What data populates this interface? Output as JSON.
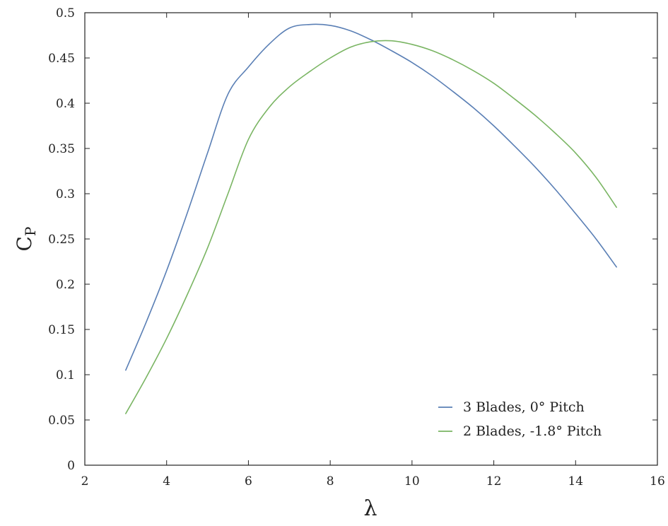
{
  "chart_data": {
    "type": "line",
    "title": "",
    "xlabel": "λ",
    "ylabel_main": "C",
    "ylabel_sub": "P",
    "xlim": [
      2,
      16
    ],
    "ylim": [
      0,
      0.5
    ],
    "x_ticks": [
      2,
      4,
      6,
      8,
      10,
      12,
      14,
      16
    ],
    "y_ticks": [
      0,
      0.05,
      0.1,
      0.15,
      0.2,
      0.25,
      0.3,
      0.35,
      0.4,
      0.45,
      0.5
    ],
    "x_tick_labels": [
      "2",
      "4",
      "6",
      "8",
      "10",
      "12",
      "14",
      "16"
    ],
    "y_tick_labels": [
      "0",
      "0.05",
      "0.1",
      "0.15",
      "0.2",
      "0.25",
      "0.3",
      "0.35",
      "0.4",
      "0.45",
      "0.5"
    ],
    "grid": false,
    "legend_position": "bottom-right",
    "series": [
      {
        "name": "3 Blades, 0° Pitch",
        "color": "#5a7fb5",
        "x": [
          3,
          3.5,
          4,
          4.5,
          5,
          5.5,
          6,
          6.5,
          7,
          7.5,
          8,
          8.5,
          9,
          9.5,
          10,
          10.5,
          11,
          11.5,
          12,
          12.5,
          13,
          13.5,
          14,
          14.5,
          15
        ],
        "y": [
          0.105,
          0.158,
          0.215,
          0.278,
          0.345,
          0.41,
          0.44,
          0.465,
          0.483,
          0.487,
          0.486,
          0.48,
          0.47,
          0.458,
          0.445,
          0.43,
          0.413,
          0.395,
          0.375,
          0.353,
          0.33,
          0.305,
          0.278,
          0.25,
          0.219
        ]
      },
      {
        "name": "2 Blades, -1.8° Pitch",
        "color": "#7ab563",
        "x": [
          3,
          3.5,
          4,
          4.5,
          5,
          5.5,
          6,
          6.5,
          7,
          7.5,
          8,
          8.5,
          9,
          9.5,
          10,
          10.5,
          11,
          11.5,
          12,
          12.5,
          13,
          13.5,
          14,
          14.5,
          15
        ],
        "y": [
          0.057,
          0.097,
          0.14,
          0.188,
          0.24,
          0.3,
          0.36,
          0.395,
          0.418,
          0.435,
          0.45,
          0.462,
          0.468,
          0.469,
          0.465,
          0.458,
          0.448,
          0.436,
          0.422,
          0.405,
          0.387,
          0.367,
          0.345,
          0.318,
          0.285
        ]
      }
    ]
  }
}
